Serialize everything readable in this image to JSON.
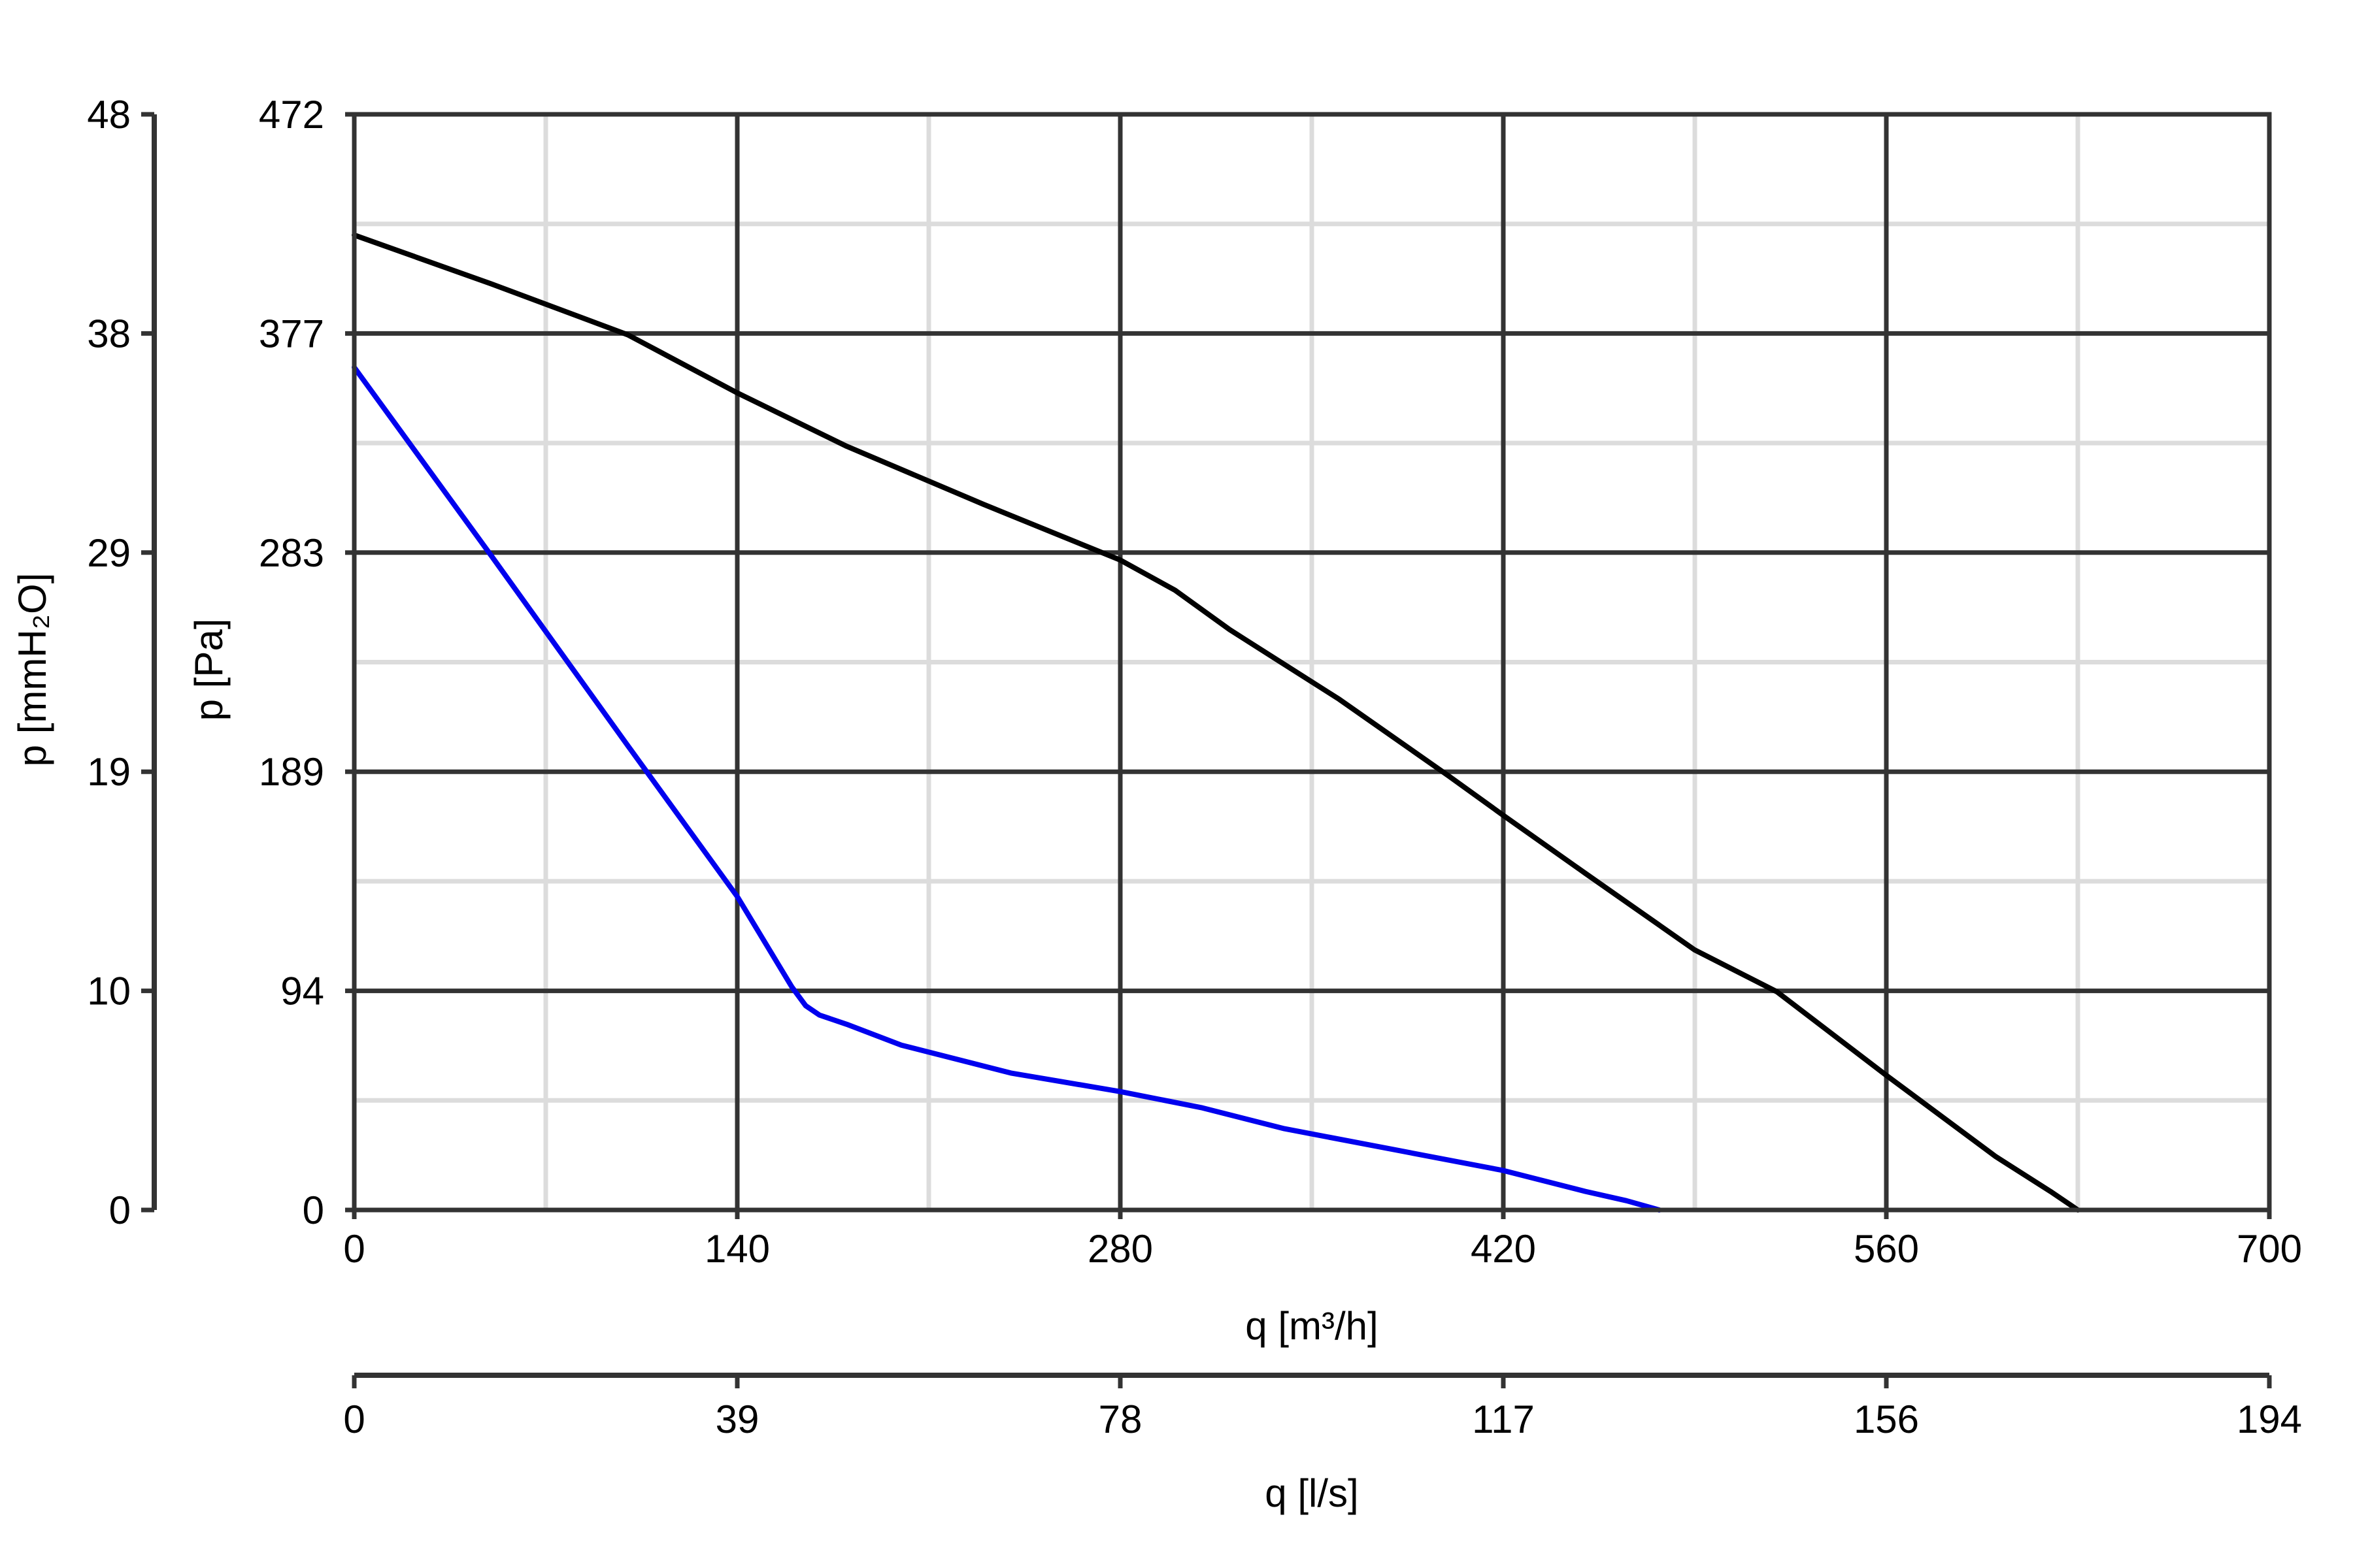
{
  "chart_data": {
    "type": "line",
    "xlabel": "q [m³/h]",
    "xlabel_secondary": "q [l/s]",
    "ylabel": "p [Pa]",
    "ylabel_secondary": "p [mmH₂O]",
    "xlim": [
      0,
      700
    ],
    "ylim": [
      0,
      472
    ],
    "x_ticks": [
      "0",
      "140",
      "280",
      "420",
      "560",
      "700"
    ],
    "x_secondary_ticks": [
      "0",
      "39",
      "78",
      "117",
      "156",
      "194"
    ],
    "y_ticks": [
      "0",
      "94",
      "189",
      "283",
      "377",
      "472"
    ],
    "y_secondary_ticks": [
      "0",
      "10",
      "19",
      "29",
      "38",
      "48"
    ],
    "grid": true,
    "series": [
      {
        "color": "#000000",
        "x": [
          0,
          50,
          100,
          140,
          180,
          230,
          280,
          300,
          320,
          360,
          400,
          420,
          450,
          490,
          520,
          560,
          600,
          620,
          630
        ],
        "y": [
          420,
          399,
          377,
          352,
          329,
          304,
          280,
          267,
          250,
          220,
          187,
          170,
          145,
          112,
          94,
          58,
          23,
          8,
          0
        ]
      },
      {
        "color": "#0000ee",
        "x": [
          0,
          50,
          100,
          140,
          160,
          165,
          170,
          180,
          200,
          240,
          280,
          310,
          340,
          380,
          420,
          450,
          465,
          477
        ],
        "y": [
          363,
          282,
          200,
          135,
          96,
          88,
          84,
          80,
          71,
          59,
          51,
          44,
          35,
          26,
          17,
          8,
          4,
          0
        ]
      }
    ],
    "colors": {
      "grid_major": "#333333",
      "grid_minor": "#dcdcdc",
      "axis": "#333333"
    }
  }
}
